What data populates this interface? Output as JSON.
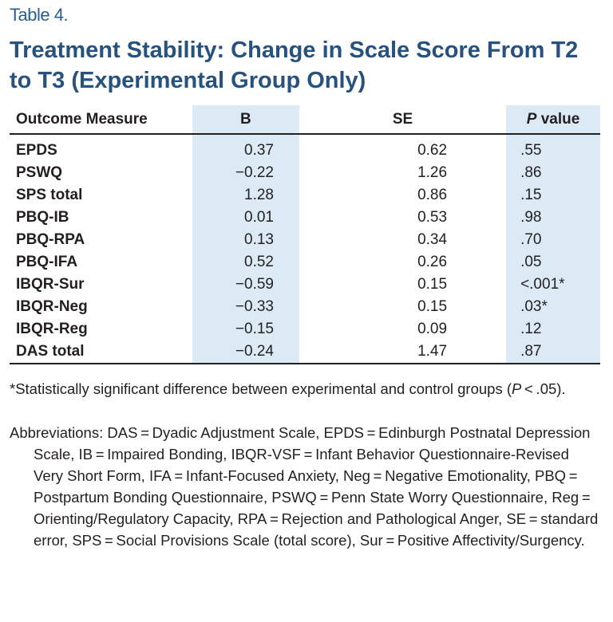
{
  "label": "Table 4.",
  "title": "Treatment Stability: Change in Scale Score From T2 to T3 (Experimental Group Only)",
  "table": {
    "headers": [
      "Outcome Measure",
      "B",
      "SE",
      [
        "P",
        "value"
      ]
    ],
    "rows": [
      [
        "EPDS",
        "0.37",
        "0.62",
        ".55"
      ],
      [
        "PSWQ",
        "−0.22",
        "1.26",
        ".86"
      ],
      [
        "SPS total",
        "1.28",
        "0.86",
        ".15"
      ],
      [
        "PBQ-IB",
        "0.01",
        "0.53",
        ".98"
      ],
      [
        "PBQ-RPA",
        "0.13",
        "0.34",
        ".70"
      ],
      [
        "PBQ-IFA",
        "0.52",
        "0.26",
        ".05"
      ],
      [
        "IBQR-Sur",
        "−0.59",
        "0.15",
        "<.001*"
      ],
      [
        "IBQR-Neg",
        "−0.33",
        "0.15",
        ".03*"
      ],
      [
        "IBQR-Reg",
        "−0.15",
        "0.09",
        ".12"
      ],
      [
        "DAS total",
        "−0.24",
        "1.47",
        ".87"
      ]
    ]
  },
  "footnote": [
    "*Statistically significant difference between experimental and control groups (",
    "P",
    " < .05)."
  ],
  "abbreviations": "Abbreviations: DAS = Dyadic Adjustment Scale, EPDS = Edinburgh Postnatal Depression Scale, IB = Impaired Bonding, IBQR-VSF = Infant Behavior Questionnaire-Revised Very Short Form, IFA = Infant-Focused Anxiety, Neg = Negative Emotionality, PBQ = Postpartum Bonding Questionnaire, PSWQ = Penn State Worry Questionnaire, Reg = Orienting/Regulatory Capacity, RPA = Rejection and Pathological Anger, SE = standard error, SPS = Social Provisions Scale (total score), Sur = Positive Affectivity/Surgency."
}
